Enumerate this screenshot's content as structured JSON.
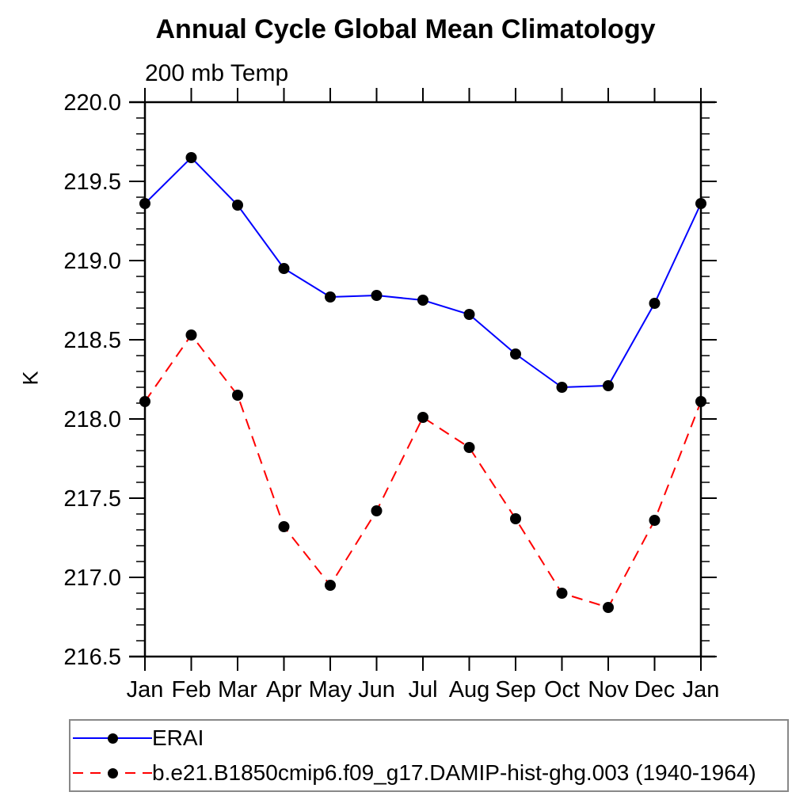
{
  "header": {
    "title": "Annual Cycle Global Mean Climatology",
    "subtitle": "200 mb Temp"
  },
  "axes": {
    "y_label": "K",
    "y_tick_labels": [
      "220.0",
      "219.5",
      "219.0",
      "218.5",
      "218.0",
      "217.5",
      "217.0",
      "216.5"
    ],
    "x_tick_labels": [
      "Jan",
      "Feb",
      "Mar",
      "Apr",
      "May",
      "Jun",
      "Jul",
      "Aug",
      "Sep",
      "Oct",
      "Nov",
      "Dec",
      "Jan"
    ]
  },
  "colors": {
    "axis": "#000000",
    "marker": "#000000",
    "erai_line": "#0000ff",
    "model_line": "#ff0000",
    "legend_border": "#888888"
  },
  "chart_data": {
    "type": "line",
    "title": "Annual Cycle Global Mean Climatology",
    "subtitle": "200 mb Temp",
    "xlabel": "",
    "ylabel": "K",
    "ylim": [
      216.5,
      220.0
    ],
    "y_major_step": 0.5,
    "y_minor_step": 0.1,
    "grid": false,
    "legend_position": "bottom",
    "categories": [
      "Jan",
      "Feb",
      "Mar",
      "Apr",
      "May",
      "Jun",
      "Jul",
      "Aug",
      "Sep",
      "Oct",
      "Nov",
      "Dec",
      "Jan"
    ],
    "series": [
      {
        "name": "ERAI",
        "color": "#0000ff",
        "style": "solid",
        "marker": "filled-circle",
        "values": [
          219.36,
          219.65,
          219.35,
          218.95,
          218.77,
          218.78,
          218.75,
          218.66,
          218.41,
          218.2,
          218.21,
          218.73,
          219.36
        ]
      },
      {
        "name": "b.e21.B1850cmip6.f09_g17.DAMIP-hist-ghg.003 (1940-1964)",
        "color": "#ff0000",
        "style": "dashed",
        "marker": "filled-circle",
        "values": [
          218.11,
          218.53,
          218.15,
          217.32,
          216.95,
          217.42,
          218.01,
          217.82,
          217.37,
          216.9,
          216.81,
          217.36,
          218.11
        ]
      }
    ]
  }
}
